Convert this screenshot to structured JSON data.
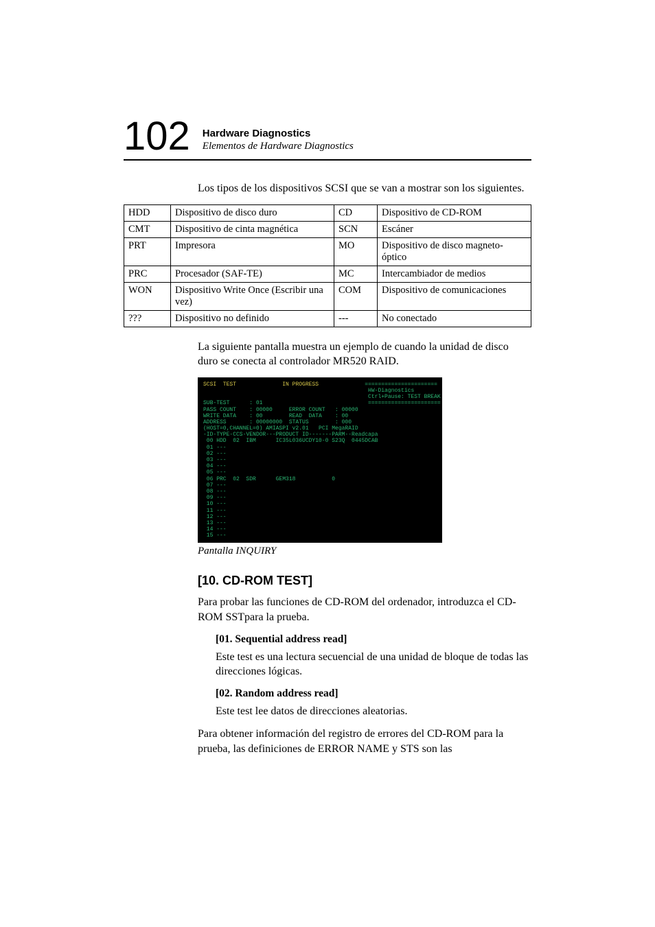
{
  "header": {
    "page_number": "102",
    "title": "Hardware Diagnostics",
    "subtitle": "Elementos de Hardware Diagnostics"
  },
  "intro_para": "Los tipos de los dispositivos SCSI que se van a mostrar son los siguientes.",
  "table": {
    "rows": [
      [
        "HDD",
        "Dispositivo de disco duro",
        "CD",
        "Dispositivo de CD-ROM"
      ],
      [
        "CMT",
        "Dispositivo de cinta magnética",
        "SCN",
        "Escáner"
      ],
      [
        "PRT",
        "Impresora",
        "MO",
        "Dispositivo de disco magneto-óptico"
      ],
      [
        "PRC",
        "Procesador (SAF-TE)",
        "MC",
        "Intercambiador de medios"
      ],
      [
        "WON",
        "Dispositivo Write Once (Escribir una vez)",
        "COM",
        "Dispositivo de comunicaciones"
      ],
      [
        "???",
        "Dispositivo no definido",
        "---",
        "No conectado"
      ]
    ]
  },
  "after_table_para": "La siguiente pantalla muestra un ejemplo de cuando la unidad de disco duro se conecta al controlador MR520 RAID.",
  "screenshot": {
    "title_left": "SCSI  TEST",
    "title_mid": "IN PROGRESS",
    "right1": "======================",
    "right2": "HW-Diagnostics",
    "right3": "Ctrl+Pause: TEST BREAK",
    "right4": "======================",
    "l1": "SUB-TEST      : 01",
    "l2": "PASS COUNT    : 00000     ERROR COUNT   : 00000",
    "l3": "WRITE DATA    : 00        READ  DATA    : 00",
    "l4": "ADDRESS       : 00000000  STATUS        : 000",
    "l5": "(HOST=0,CHANNEL=0) AMIASPI v2.01   PCI MegaRAID",
    "l6": "-ID-TYPE-CCS-VENDOR---PRODUCT ID-------PARM--Readcapa",
    "l7": " 00 HDD  02  IBM      IC35L036UCDY10-0 S23Q  0445DCAB",
    "l8": " 01 ---",
    "l9": " 02 ---",
    "l10": " 03 ---",
    "l11": " 04 ---",
    "l12": " 05 ---",
    "l13": " 06 PRC  02  SDR      GEM318           0",
    "l14": " 07 ---",
    "l15": " 08 ---",
    "l16": " 09 ---",
    "l17": " 10 ---",
    "l18": " 11 ---",
    "l19": " 12 ---",
    "l20": " 13 ---",
    "l21": " 14 ---",
    "l22": " 15 ---"
  },
  "caption": "Pantalla INQUIRY",
  "section": {
    "title": "[10. CD-ROM TEST]",
    "intro": "Para probar las funciones de CD-ROM del ordenador, introduzca el CD-ROM SSTpara la prueba.",
    "sub1_title": "[01. Sequential address read]",
    "sub1_body": "Este test es una lectura secuencial de una unidad de bloque de todas las direcciones lógicas.",
    "sub2_title": "[02. Random address read]",
    "sub2_body": "Este test lee datos de direcciones aleatorias.",
    "outro": "Para obtener información del registro de errores del CD-ROM para la prueba, las definiciones de ERROR NAME y STS son las"
  }
}
